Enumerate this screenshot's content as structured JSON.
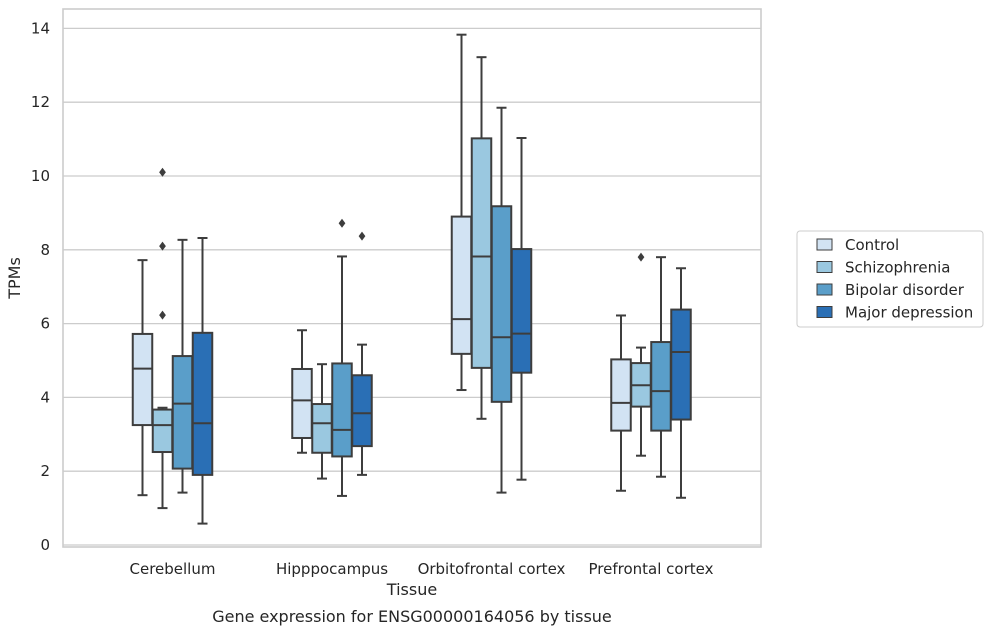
{
  "chart_data": {
    "type": "box",
    "xlabel": "Tissue",
    "ylabel": "TPMs",
    "caption": "Gene expression for ENSG00000164056 by tissue",
    "ylim": [
      0,
      14.5
    ],
    "yticks": [
      0,
      2,
      4,
      6,
      8,
      10,
      12,
      14
    ],
    "grid": "horizontal",
    "legend_position": "right",
    "categories": [
      "Cerebellum",
      "Hipppocampus",
      "Orbitofrontal cortex",
      "Prefrontal cortex"
    ],
    "series": [
      {
        "name": "Control",
        "color": "#d2e3f3",
        "boxes": [
          {
            "whisker_low": 1.35,
            "q1": 3.25,
            "median": 4.78,
            "q3": 5.72,
            "whisker_high": 7.72,
            "outliers": []
          },
          {
            "whisker_low": 2.5,
            "q1": 2.9,
            "median": 3.92,
            "q3": 4.77,
            "whisker_high": 5.82,
            "outliers": []
          },
          {
            "whisker_low": 4.2,
            "q1": 5.18,
            "median": 6.12,
            "q3": 8.9,
            "whisker_high": 13.83,
            "outliers": []
          },
          {
            "whisker_low": 1.47,
            "q1": 3.1,
            "median": 3.85,
            "q3": 5.03,
            "whisker_high": 6.22,
            "outliers": []
          }
        ]
      },
      {
        "name": "Schizophrenia",
        "color": "#9ac8e0",
        "boxes": [
          {
            "whisker_low": 1.0,
            "q1": 2.52,
            "median": 3.25,
            "q3": 3.67,
            "whisker_high": 3.72,
            "outliers": [
              6.23,
              8.1,
              10.1
            ]
          },
          {
            "whisker_low": 1.8,
            "q1": 2.5,
            "median": 3.3,
            "q3": 3.82,
            "whisker_high": 4.9,
            "outliers": []
          },
          {
            "whisker_low": 3.42,
            "q1": 4.8,
            "median": 7.82,
            "q3": 11.02,
            "whisker_high": 13.22,
            "outliers": []
          },
          {
            "whisker_low": 2.42,
            "q1": 3.75,
            "median": 4.33,
            "q3": 4.93,
            "whisker_high": 5.35,
            "outliers": [
              7.8
            ]
          }
        ]
      },
      {
        "name": "Bipolar disorder",
        "color": "#5a9ec9",
        "boxes": [
          {
            "whisker_low": 1.42,
            "q1": 2.07,
            "median": 3.83,
            "q3": 5.12,
            "whisker_high": 8.27,
            "outliers": []
          },
          {
            "whisker_low": 1.33,
            "q1": 2.4,
            "median": 3.12,
            "q3": 4.92,
            "whisker_high": 7.82,
            "outliers": [
              8.72
            ]
          },
          {
            "whisker_low": 1.42,
            "q1": 3.88,
            "median": 5.63,
            "q3": 9.18,
            "whisker_high": 11.85,
            "outliers": []
          },
          {
            "whisker_low": 1.85,
            "q1": 3.1,
            "median": 4.17,
            "q3": 5.5,
            "whisker_high": 7.8,
            "outliers": []
          }
        ]
      },
      {
        "name": "Major depression",
        "color": "#2a6fb5",
        "boxes": [
          {
            "whisker_low": 0.58,
            "q1": 1.9,
            "median": 3.3,
            "q3": 5.75,
            "whisker_high": 8.32,
            "outliers": []
          },
          {
            "whisker_low": 1.9,
            "q1": 2.68,
            "median": 3.57,
            "q3": 4.6,
            "whisker_high": 5.43,
            "outliers": [
              8.37
            ]
          },
          {
            "whisker_low": 1.77,
            "q1": 4.67,
            "median": 5.73,
            "q3": 8.02,
            "whisker_high": 11.03,
            "outliers": []
          },
          {
            "whisker_low": 1.28,
            "q1": 3.4,
            "median": 5.23,
            "q3": 6.38,
            "whisker_high": 7.5,
            "outliers": []
          }
        ]
      }
    ]
  }
}
